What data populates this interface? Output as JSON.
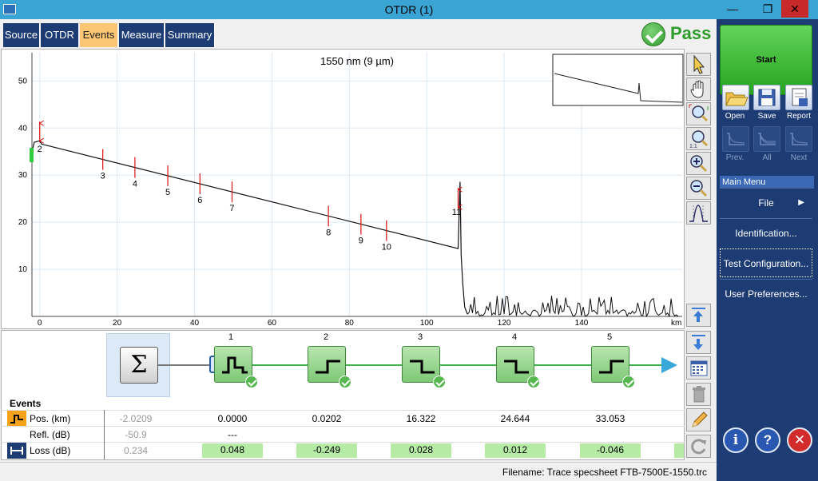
{
  "window": {
    "title": "OTDR (1)",
    "minimize_icon": "minimize-icon",
    "maximize_icon": "maximize-icon",
    "close_icon": "close-icon"
  },
  "tabs": [
    {
      "label": "Source",
      "active": false
    },
    {
      "label": "OTDR",
      "active": false
    },
    {
      "label": "Events",
      "active": true
    },
    {
      "label": "Measure",
      "active": false
    },
    {
      "label": "Summary",
      "active": false
    }
  ],
  "status": {
    "label": "Pass",
    "color": "#2e9b2a"
  },
  "graph": {
    "wavelength_label": "1550 nm (9 µm)",
    "x_unit": "km",
    "x_ticks": [
      "0",
      "20",
      "40",
      "60",
      "80",
      "100",
      "120",
      "140"
    ],
    "y_ticks": [
      "10",
      "20",
      "30",
      "40",
      "50"
    ],
    "event_labels": [
      "2",
      "3",
      "4",
      "5",
      "6",
      "7",
      "8",
      "9",
      "10",
      "11"
    ]
  },
  "chart_data": {
    "type": "line",
    "title": "1550 nm (9 µm)",
    "xlabel": "km",
    "ylabel": "",
    "xlim": [
      -2,
      166
    ],
    "ylim": [
      0,
      56
    ],
    "x_ticks": [
      0,
      20,
      40,
      60,
      80,
      100,
      120,
      140
    ],
    "y_ticks": [
      10,
      20,
      30,
      40,
      50
    ],
    "grid": true,
    "series": [
      {
        "x": [
          -2.0,
          -1.4,
          0,
          0.5,
          1.0,
          108.1,
          108.6,
          108.9,
          109.3,
          109.8,
          110.5
        ],
        "y": [
          35.0,
          37.0,
          37.3,
          36.6,
          36.5,
          14.4,
          28.6,
          13.0,
          7.0,
          2.0,
          0.5
        ]
      }
    ],
    "events": [
      {
        "label": "2",
        "x": 0.0
      },
      {
        "label": "3",
        "x": 16.3
      },
      {
        "label": "4",
        "x": 24.6
      },
      {
        "label": "5",
        "x": 33.1
      },
      {
        "label": "6",
        "x": 41.4
      },
      {
        "label": "7",
        "x": 49.7
      },
      {
        "label": "8",
        "x": 74.6
      },
      {
        "label": "9",
        "x": 83.0
      },
      {
        "label": "10",
        "x": 89.6
      },
      {
        "label": "11",
        "x": 108.1
      }
    ]
  },
  "events_panel": {
    "title": "Events",
    "sum_symbol": "Σ",
    "event_numbers": [
      "1",
      "2",
      "3",
      "4",
      "5"
    ],
    "event_types": [
      "reflective",
      "step-up",
      "step-down",
      "step-down",
      "step-up"
    ],
    "rows": [
      {
        "label": "Pos. (km)",
        "values": [
          "-2.0209",
          "0.0000",
          "0.0202",
          "16.322",
          "24.644",
          "33.053"
        ]
      },
      {
        "label": "Refl. (dB)",
        "values": [
          "-50.9",
          "---",
          "",
          "",
          "",
          ""
        ]
      },
      {
        "label": "Loss (dB)",
        "values": [
          "0.234",
          "0.048",
          "-0.249",
          "0.028",
          "0.012",
          "-0.046"
        ]
      }
    ]
  },
  "statusbar": {
    "filename": "Filename: Trace specsheet FTB-7500E-1550.trc"
  },
  "sidebar": {
    "start_label": "Start",
    "file_buttons": [
      {
        "label": "Open",
        "icon": "open-folder-icon"
      },
      {
        "label": "Save",
        "icon": "save-disk-icon"
      },
      {
        "label": "Report",
        "icon": "report-icon"
      }
    ],
    "nav_buttons": [
      {
        "label": "Prev.",
        "icon": "prev-trace-icon"
      },
      {
        "label": "All",
        "icon": "all-traces-icon"
      },
      {
        "label": "Next",
        "icon": "next-trace-icon"
      }
    ],
    "main_menu_title": "Main Menu",
    "menu_items": [
      "File",
      "Identification...",
      "Test Configuration...",
      "User Preferences..."
    ],
    "info_symbol": "i",
    "help_symbol": "?",
    "close_symbol": "✕"
  }
}
